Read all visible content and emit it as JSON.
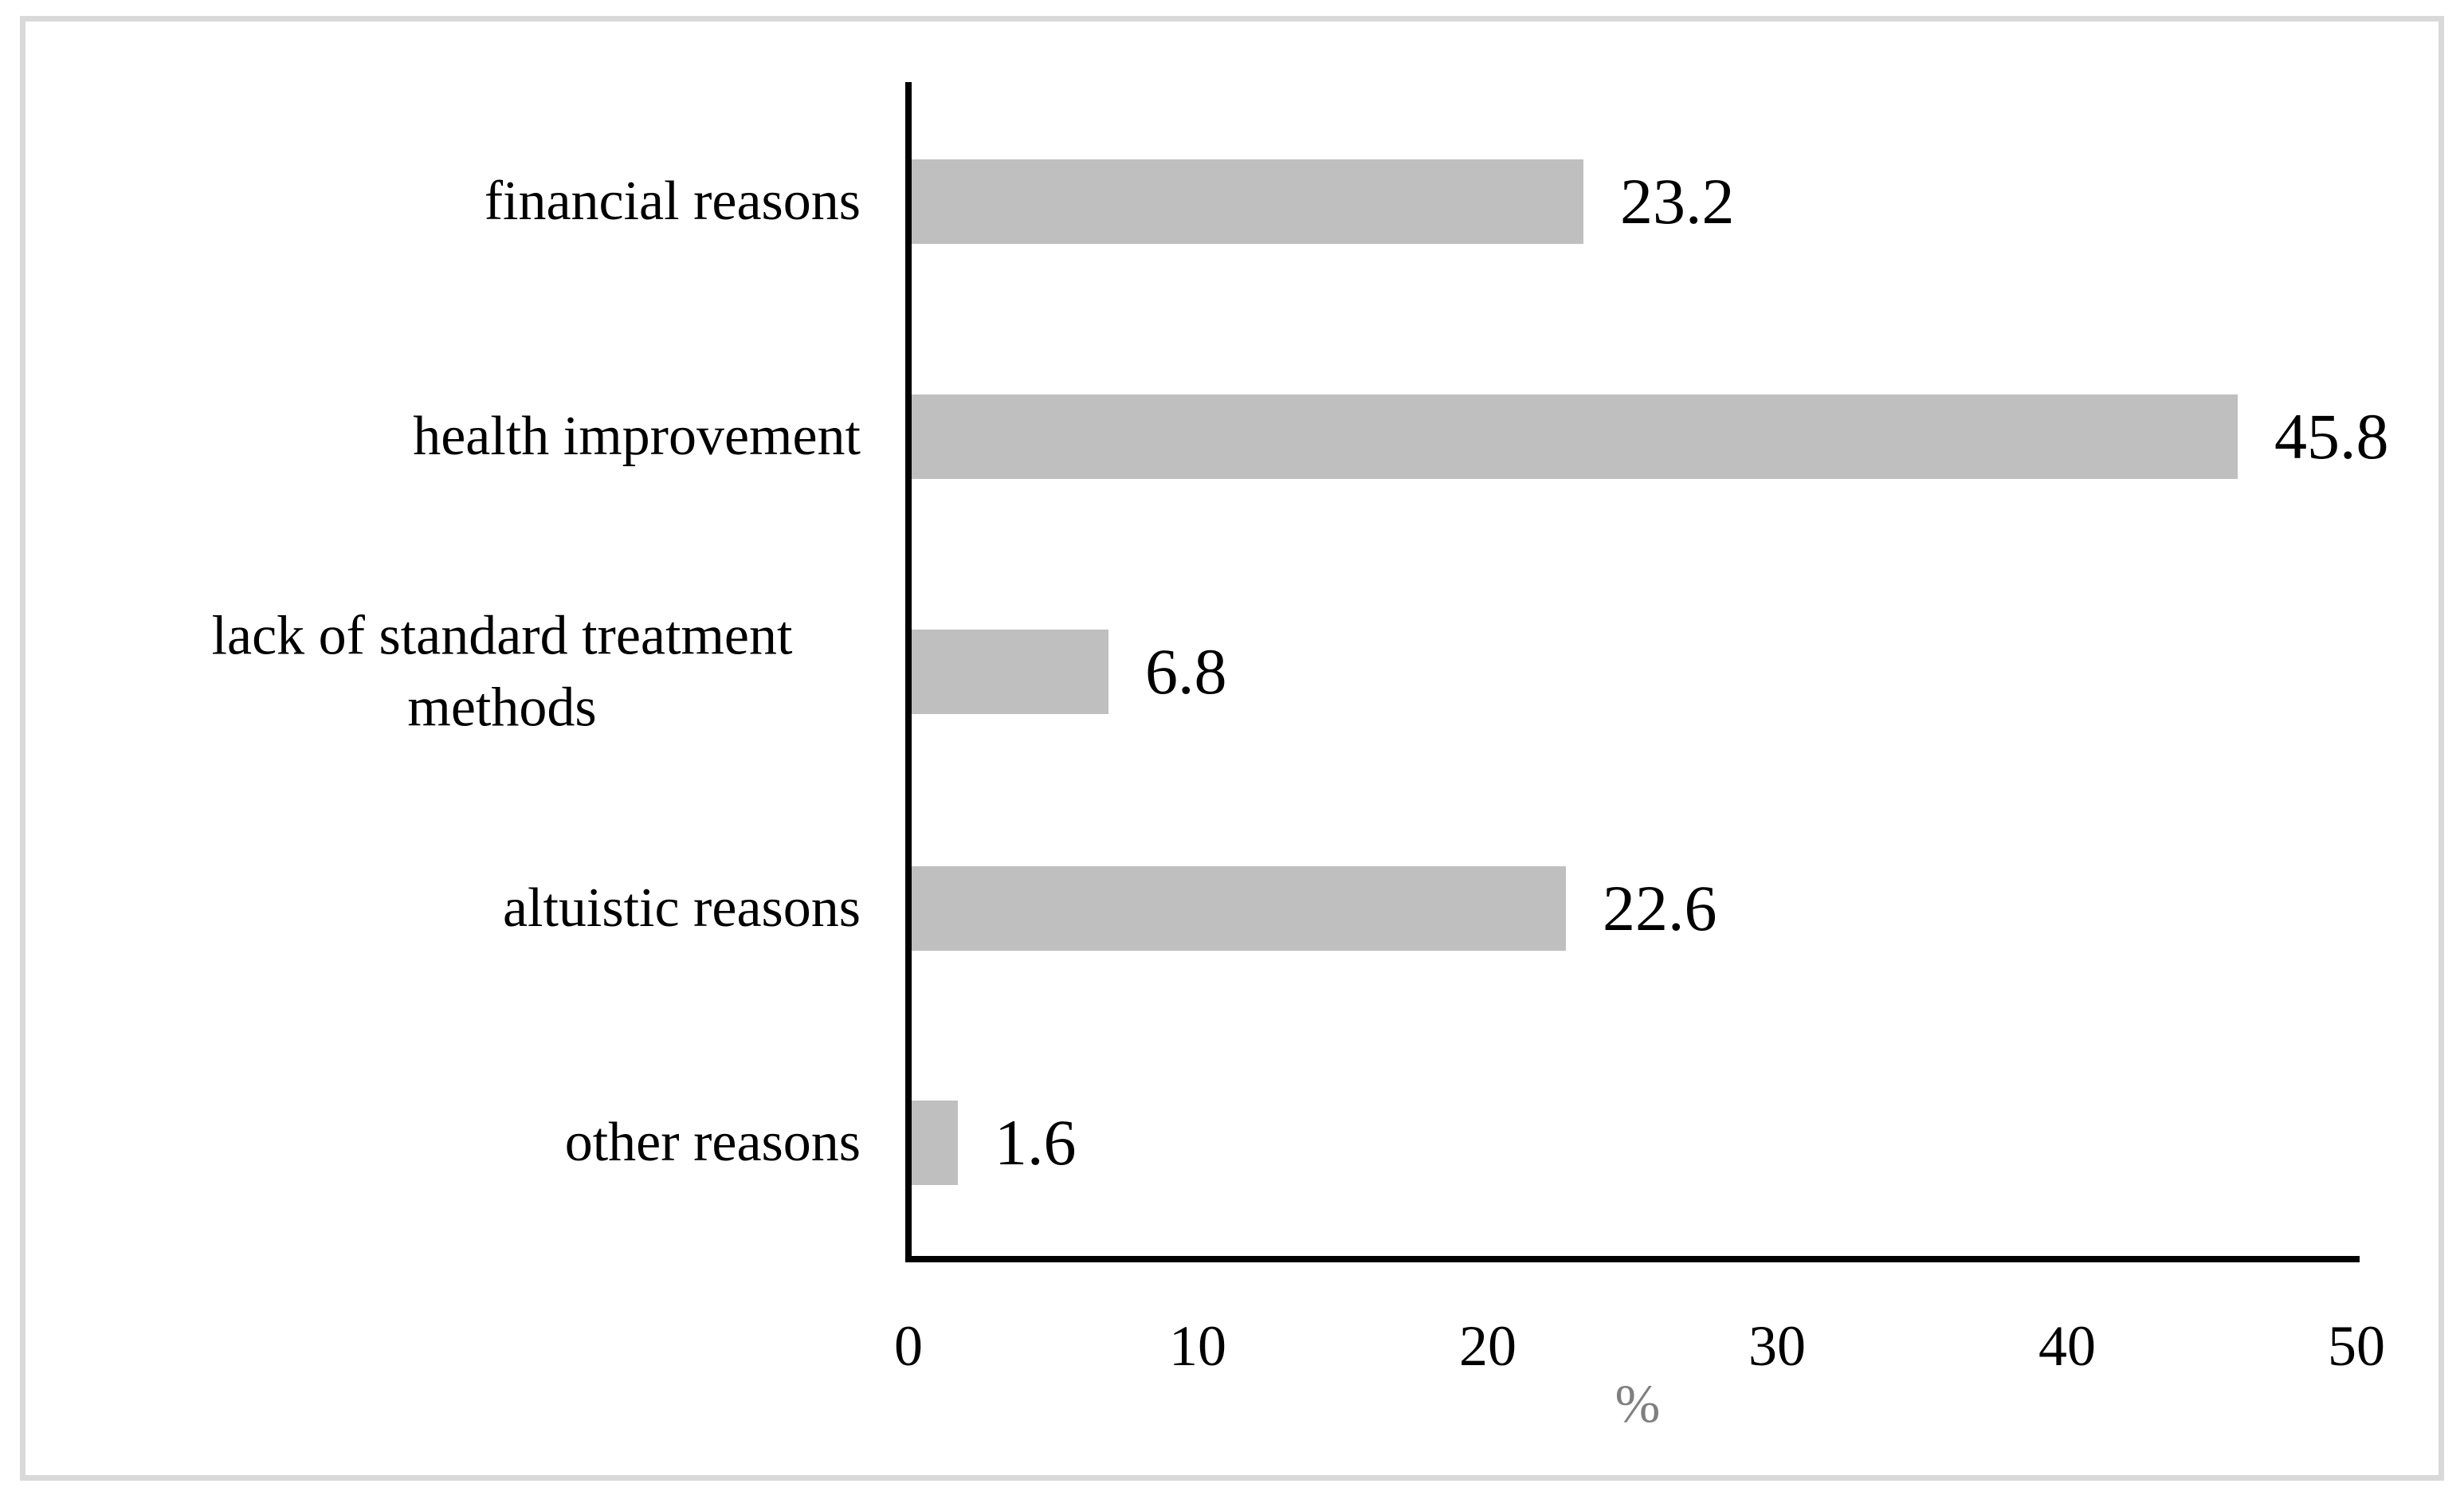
{
  "figure": {
    "frame_color": "#d9d9d9",
    "axis_color": "#000000",
    "bar_color": "#bfbfbf",
    "xlabel_color": "#7f7f7f"
  },
  "chart_data": {
    "type": "bar",
    "orientation": "horizontal",
    "title": "",
    "categories": [
      "financial reasons",
      "health improvement",
      "lack of standard treatment methods",
      "altuistic reasons",
      "other reasons"
    ],
    "values": [
      23.2,
      45.8,
      6.8,
      22.6,
      1.6
    ],
    "data_labels": [
      "23.2",
      "45.8",
      "6.8",
      "22.6",
      "1.6"
    ],
    "xlabel": "%",
    "xlim": [
      0,
      50
    ],
    "xticks": [
      0,
      10,
      20,
      30,
      40,
      50
    ],
    "grid": false,
    "legend": false,
    "bar_color": "#bfbfbf"
  }
}
